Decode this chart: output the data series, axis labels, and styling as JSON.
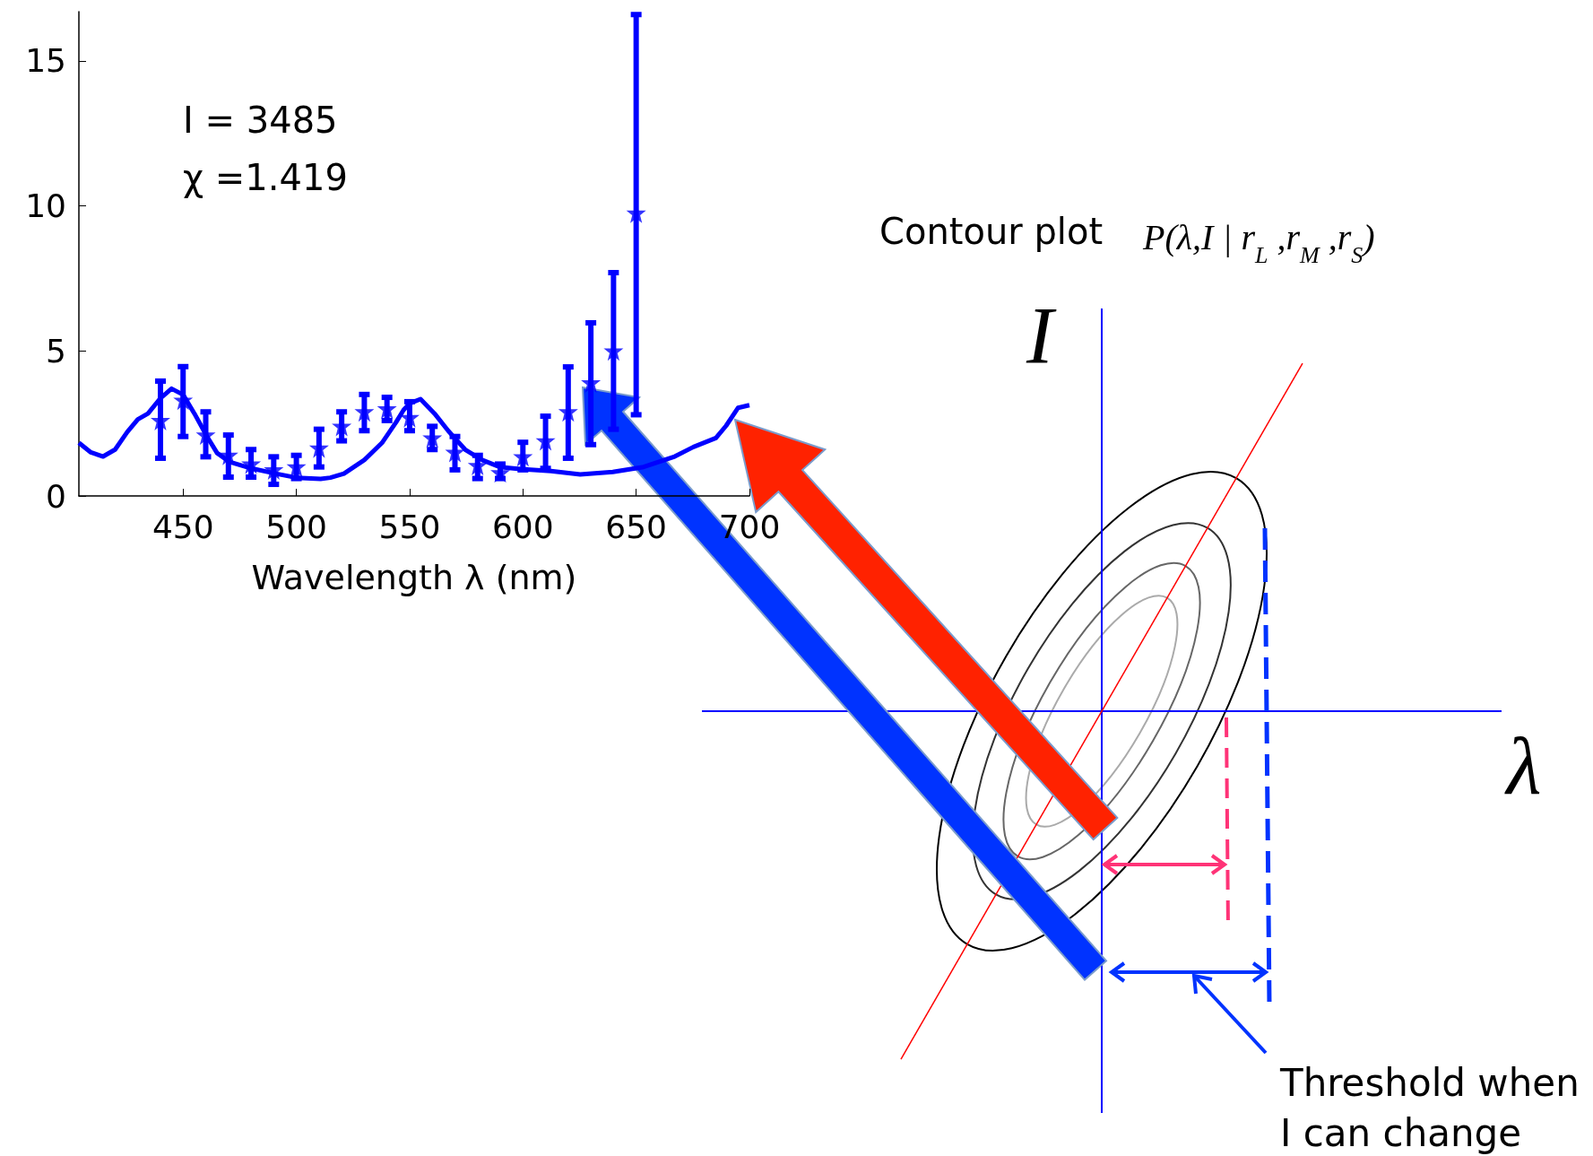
{
  "chart_data": {
    "type": "line",
    "xlabel": "Wavelength λ (nm)",
    "xlim": [
      404,
      700
    ],
    "xticks": [
      450,
      500,
      550,
      600,
      650,
      700
    ],
    "ylim": [
      0,
      16.7
    ],
    "yticks": [
      0,
      5,
      10,
      15
    ],
    "grid": false,
    "annotations": [
      "I = 3485",
      "χ =1.419",
      "Contour plot",
      "P(λ,I | r$_{L}$ ,r$_{M}$ ,r$_{S}$)",
      "I",
      "λ",
      "Threshold when\nI can change"
    ],
    "series": [
      {
        "type": "line",
        "color": "#0000ff",
        "marker": "none",
        "x": [
          404,
          409.3,
          414.7,
          420,
          425.3,
          430,
          434.5,
          440,
          444.9,
          450,
          455,
          460.4,
          465,
          470.3,
          480.2,
          490.9,
          500,
          510.7,
          515,
          521,
          530,
          537.8,
          544,
          547.3,
          550,
          554.8,
          561,
          567,
          574.5,
          582,
          589.7,
          598.8,
          612.4,
          625.3,
          639.7,
          653.3,
          667,
          675.3,
          685.2,
          689.7,
          695,
          700
        ],
        "values": [
          1.83,
          1.5,
          1.36,
          1.6,
          2.2,
          2.64,
          2.84,
          3.37,
          3.7,
          3.49,
          2.84,
          2.07,
          1.48,
          1.18,
          0.95,
          0.77,
          0.63,
          0.59,
          0.63,
          0.77,
          1.24,
          1.83,
          2.54,
          2.96,
          3.19,
          3.34,
          2.84,
          2.25,
          1.6,
          1.24,
          1.0,
          0.93,
          0.86,
          0.74,
          0.83,
          1.0,
          1.36,
          1.69,
          2.0,
          2.42,
          3.04,
          3.13
        ]
      },
      {
        "type": "scatter",
        "color": "#0000ff",
        "marker": "star",
        "x": [
          440,
          450,
          460,
          470,
          480,
          490,
          500,
          510,
          520,
          530,
          540,
          550,
          560,
          570,
          580,
          590,
          600,
          610,
          620,
          630,
          640,
          650
        ],
        "values": [
          2.6,
          3.3,
          2.1,
          1.4,
          1.1,
          0.9,
          1.0,
          1.65,
          2.4,
          2.9,
          3.0,
          2.7,
          2.0,
          1.5,
          1.05,
          0.8,
          1.35,
          1.9,
          2.9,
          3.9,
          5.0,
          9.75
        ],
        "errors": [
          [
            1.3,
            3.96
          ],
          [
            2.05,
            4.46
          ],
          [
            1.35,
            2.9
          ],
          [
            0.65,
            2.1
          ],
          [
            0.65,
            1.6
          ],
          [
            0.4,
            1.35
          ],
          [
            0.6,
            1.4
          ],
          [
            1.0,
            2.3
          ],
          [
            1.9,
            2.9
          ],
          [
            2.25,
            3.5
          ],
          [
            2.6,
            3.4
          ],
          [
            2.25,
            3.25
          ],
          [
            1.6,
            2.4
          ],
          [
            0.9,
            2.05
          ],
          [
            0.6,
            1.4
          ],
          [
            0.6,
            1.1
          ],
          [
            0.9,
            1.85
          ],
          [
            0.95,
            2.75
          ],
          [
            1.3,
            4.45
          ],
          [
            1.77,
            5.97
          ],
          [
            2.3,
            7.7
          ],
          [
            2.8,
            16.6
          ]
        ]
      }
    ]
  }
}
